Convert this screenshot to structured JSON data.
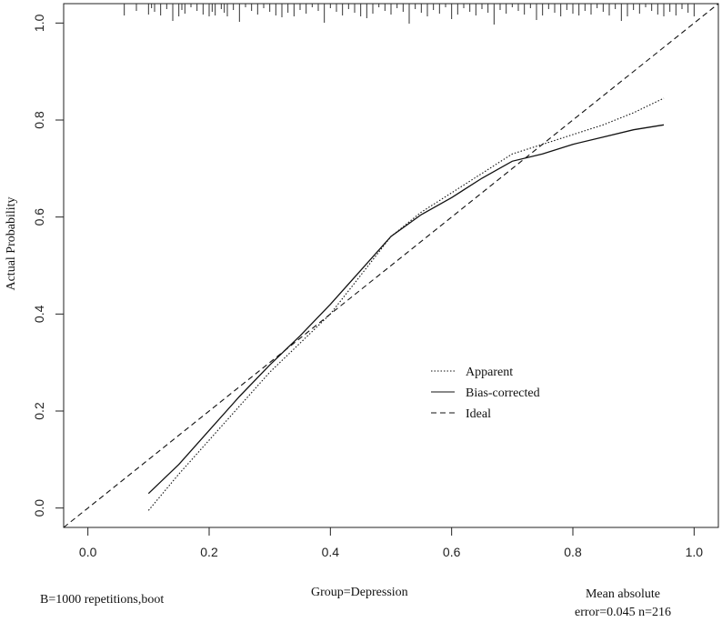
{
  "chart_data": {
    "type": "line",
    "title": "",
    "xlabel": "",
    "ylabel": "Actual Probability",
    "xlim": [
      -0.04,
      1.04
    ],
    "ylim": [
      -0.04,
      1.04
    ],
    "x_ticks": [
      "0.0",
      "0.2",
      "0.4",
      "0.6",
      "0.8",
      "1.0"
    ],
    "y_ticks": [
      "0.0",
      "0.2",
      "0.4",
      "0.6",
      "0.8",
      "1.0"
    ],
    "legend_position": "center-right",
    "series": [
      {
        "name": "Apparent",
        "style": "dotted",
        "x": [
          0.1,
          0.15,
          0.2,
          0.25,
          0.3,
          0.35,
          0.4,
          0.45,
          0.5,
          0.55,
          0.6,
          0.65,
          0.7,
          0.75,
          0.8,
          0.85,
          0.9,
          0.95
        ],
        "y": [
          -0.005,
          0.07,
          0.14,
          0.21,
          0.28,
          0.34,
          0.4,
          0.48,
          0.56,
          0.61,
          0.65,
          0.69,
          0.73,
          0.75,
          0.77,
          0.79,
          0.815,
          0.845
        ]
      },
      {
        "name": "Bias-corrected",
        "style": "solid",
        "x": [
          0.1,
          0.15,
          0.2,
          0.25,
          0.3,
          0.35,
          0.4,
          0.45,
          0.5,
          0.55,
          0.6,
          0.65,
          0.7,
          0.75,
          0.8,
          0.85,
          0.9,
          0.95
        ],
        "y": [
          0.03,
          0.09,
          0.16,
          0.23,
          0.295,
          0.355,
          0.42,
          0.49,
          0.56,
          0.605,
          0.64,
          0.68,
          0.715,
          0.73,
          0.75,
          0.765,
          0.78,
          0.79
        ]
      },
      {
        "name": "Ideal",
        "style": "dashed",
        "x": [
          -0.04,
          1.04
        ],
        "y": [
          -0.04,
          1.04
        ]
      }
    ],
    "rug_x": [
      0.06,
      0.08,
      0.1,
      0.105,
      0.11,
      0.12,
      0.13,
      0.14,
      0.15,
      0.155,
      0.16,
      0.17,
      0.18,
      0.19,
      0.2,
      0.205,
      0.21,
      0.22,
      0.225,
      0.23,
      0.24,
      0.25,
      0.26,
      0.27,
      0.28,
      0.29,
      0.3,
      0.31,
      0.32,
      0.33,
      0.34,
      0.35,
      0.36,
      0.37,
      0.38,
      0.39,
      0.4,
      0.41,
      0.42,
      0.43,
      0.44,
      0.45,
      0.46,
      0.47,
      0.48,
      0.49,
      0.5,
      0.51,
      0.52,
      0.53,
      0.54,
      0.55,
      0.56,
      0.57,
      0.58,
      0.59,
      0.6,
      0.61,
      0.62,
      0.63,
      0.64,
      0.65,
      0.66,
      0.67,
      0.68,
      0.69,
      0.7,
      0.71,
      0.72,
      0.73,
      0.74,
      0.75,
      0.76,
      0.77,
      0.78,
      0.79,
      0.8,
      0.81,
      0.82,
      0.83,
      0.84,
      0.85,
      0.86,
      0.87,
      0.88,
      0.89,
      0.9,
      0.91,
      0.92,
      0.93,
      0.94,
      0.95,
      0.96,
      0.97,
      0.98,
      0.99,
      1.0
    ]
  },
  "footer": {
    "left": "B=1000 repetitions,boot",
    "center": "Group=Depression",
    "right_line1": "Mean absolute",
    "right_line2": "error=0.045 n=216"
  }
}
